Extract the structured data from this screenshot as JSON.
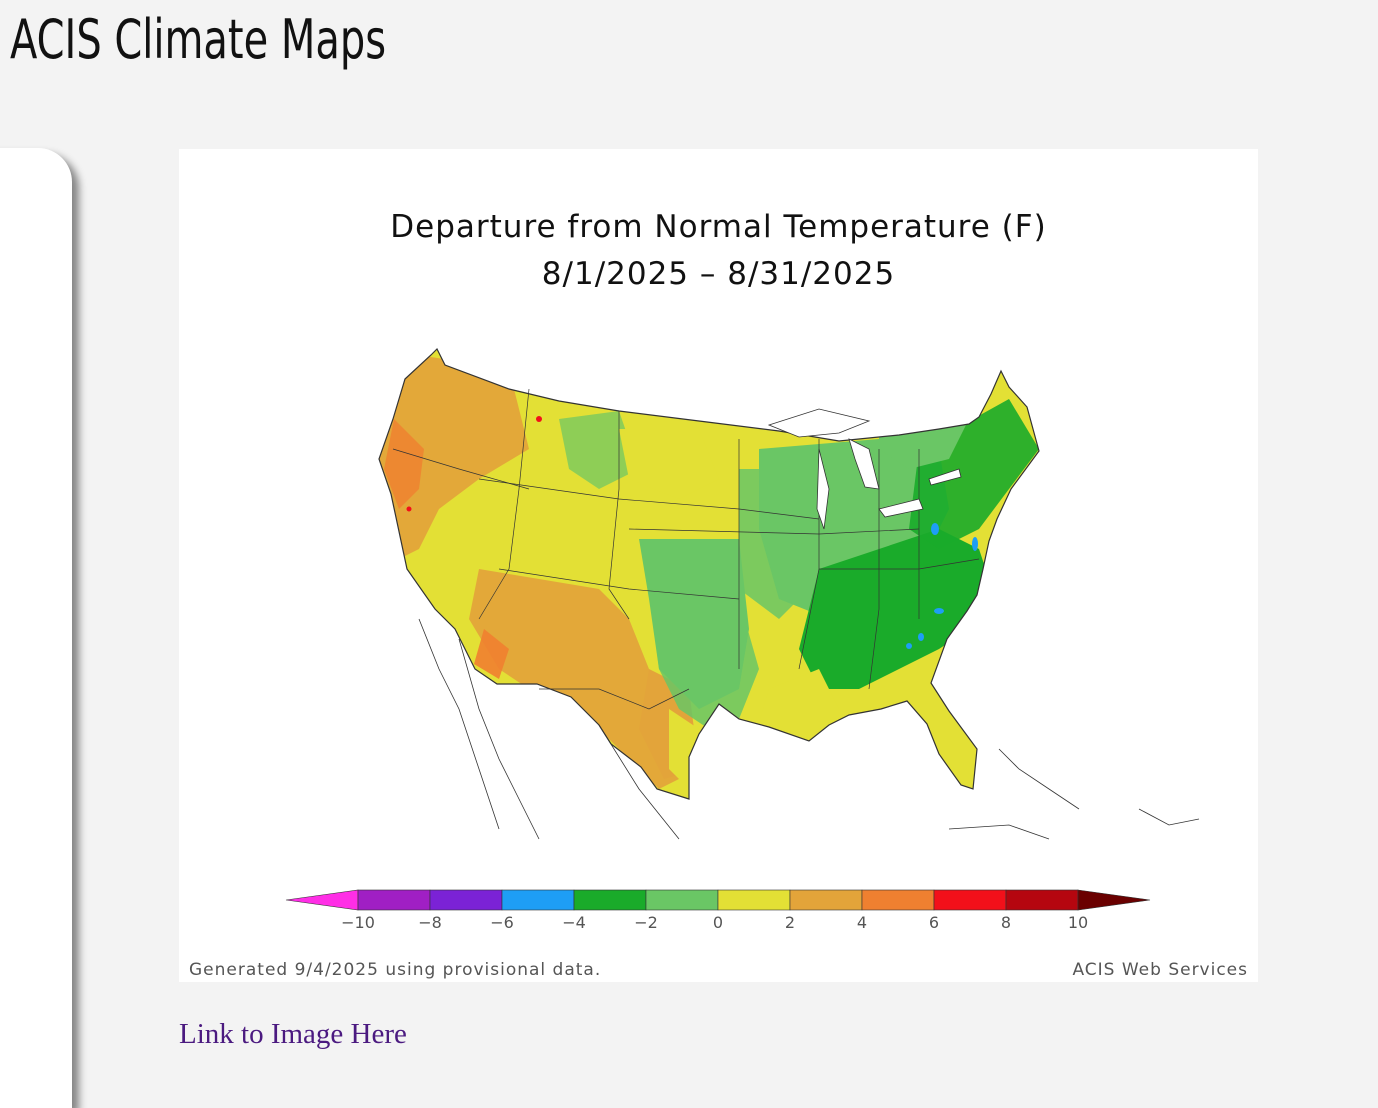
{
  "page": {
    "heading": "ACIS Climate Maps",
    "link_text": "Link to Image Here"
  },
  "map": {
    "title_line1": "Departure from Normal Temperature (F)",
    "title_line2": "8/1/2025 – 8/31/2025",
    "footer_left": "Generated 9/4/2025 using provisional data.",
    "footer_right": "ACIS Web Services",
    "legend": {
      "ticks": [
        "−10",
        "−8",
        "−6",
        "−4",
        "−2",
        "0",
        "2",
        "4",
        "6",
        "8",
        "10"
      ],
      "colors": [
        "#ff2ee6",
        "#a01fc4",
        "#7b22d6",
        "#1e9ef5",
        "#1aab2a",
        "#6ac665",
        "#e3e035",
        "#e3a43a",
        "#ef8030",
        "#f2101a",
        "#b5060f",
        "#6a0000"
      ]
    }
  }
}
